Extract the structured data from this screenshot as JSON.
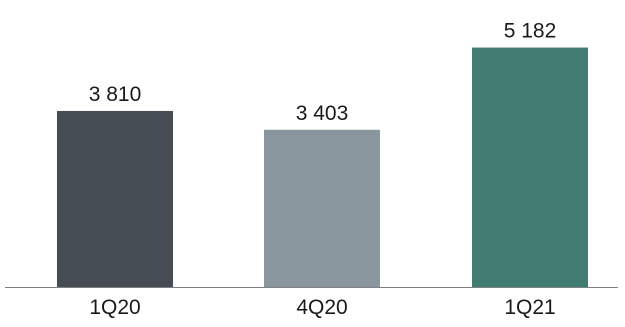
{
  "chart_data": {
    "type": "bar",
    "categories": [
      "1Q20",
      "4Q20",
      "1Q21"
    ],
    "values": [
      3810,
      3403,
      5182
    ],
    "value_labels": [
      "3 810",
      "3 403",
      "5 182"
    ],
    "colors": [
      "#454c54",
      "#8a969e",
      "#417c73"
    ],
    "axis_color": "#808080",
    "label_color": "#1a1a1a",
    "title": "",
    "xlabel": "",
    "ylabel": "",
    "ylim": [
      0,
      5800
    ],
    "grid": false,
    "legend": "none"
  }
}
